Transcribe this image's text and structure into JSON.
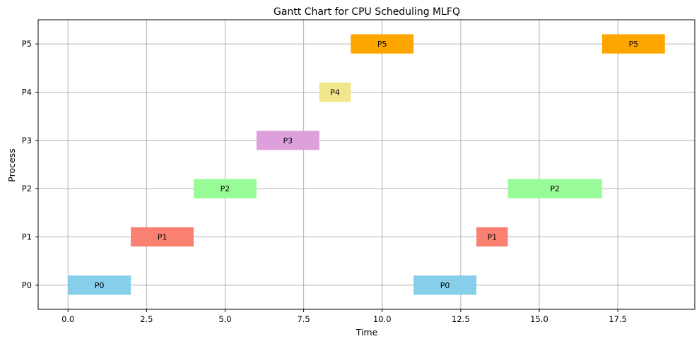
{
  "chart_data": {
    "type": "gantt",
    "title": "Gantt Chart for CPU Scheduling MLFQ",
    "xlabel": "Time",
    "ylabel": "Process",
    "xlim": [
      -0.95,
      19.95
    ],
    "xticks": [
      0.0,
      2.5,
      5.0,
      7.5,
      10.0,
      12.5,
      15.0,
      17.5
    ],
    "xtick_labels": [
      "0.0",
      "2.5",
      "5.0",
      "7.5",
      "10.0",
      "12.5",
      "15.0",
      "17.5"
    ],
    "categories": [
      "P0",
      "P1",
      "P2",
      "P3",
      "P4",
      "P5"
    ],
    "grid": true,
    "bars": [
      {
        "label": "P0",
        "process": "P0",
        "start": 0,
        "end": 2,
        "color": "#87ceeb"
      },
      {
        "label": "P1",
        "process": "P1",
        "start": 2,
        "end": 4,
        "color": "#fa8072"
      },
      {
        "label": "P2",
        "process": "P2",
        "start": 4,
        "end": 6,
        "color": "#98fb98"
      },
      {
        "label": "P3",
        "process": "P3",
        "start": 6,
        "end": 8,
        "color": "#dda0dd"
      },
      {
        "label": "P4",
        "process": "P4",
        "start": 8,
        "end": 9,
        "color": "#f0e68c"
      },
      {
        "label": "P5",
        "process": "P5",
        "start": 9,
        "end": 11,
        "color": "#ffa500"
      },
      {
        "label": "P0",
        "process": "P0",
        "start": 11,
        "end": 13,
        "color": "#87ceeb"
      },
      {
        "label": "P1",
        "process": "P1",
        "start": 13,
        "end": 14,
        "color": "#fa8072"
      },
      {
        "label": "P2",
        "process": "P2",
        "start": 14,
        "end": 17,
        "color": "#98fb98"
      },
      {
        "label": "P5",
        "process": "P5",
        "start": 17,
        "end": 19,
        "color": "#ffa500"
      }
    ]
  }
}
